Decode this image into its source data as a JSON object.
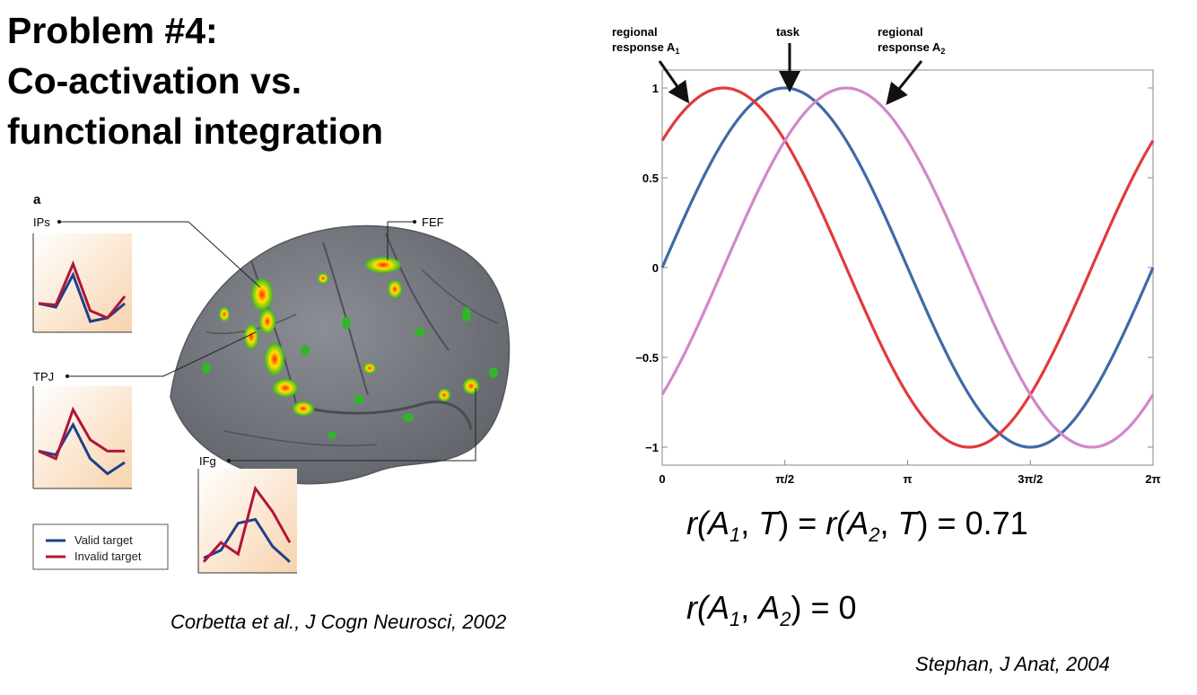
{
  "title": {
    "line1": "Problem #4:",
    "line2": "Co-activation vs.",
    "line3": "functional integration"
  },
  "left_figure": {
    "panel_letter": "a",
    "regions": {
      "ips": "IPs",
      "tpj": "TPJ",
      "ifg": "IFg",
      "fef": "FEF"
    },
    "legend": {
      "valid": "Valid target",
      "invalid": "Invalid target"
    },
    "colors": {
      "valid": "#1e3f8c",
      "invalid": "#b0153a",
      "cortex": "#7b7d85",
      "panel_bg": "#fbe6cd"
    },
    "traces": {
      "ips": {
        "valid": [
          0.3,
          0.25,
          0.7,
          0.05,
          0.1,
          0.3
        ],
        "invalid": [
          0.3,
          0.28,
          0.85,
          0.2,
          0.1,
          0.4
        ]
      },
      "tpj": {
        "valid": [
          0.4,
          0.35,
          0.75,
          0.3,
          0.1,
          0.25
        ],
        "invalid": [
          0.4,
          0.3,
          0.95,
          0.55,
          0.4,
          0.4
        ]
      },
      "ifg": {
        "valid": [
          0.1,
          0.2,
          0.55,
          0.6,
          0.25,
          0.05
        ],
        "invalid": [
          0.05,
          0.3,
          0.15,
          1.0,
          0.7,
          0.3
        ]
      }
    },
    "citation": "Corbetta et al., J Cogn Neurosci, 2002"
  },
  "chart_data": {
    "type": "line",
    "title": "",
    "xlabel": "",
    "ylabel": "",
    "xlim": [
      0,
      6.283185
    ],
    "ylim": [
      -1.1,
      1.1
    ],
    "x_ticks": [
      {
        "value": 0,
        "label": "0"
      },
      {
        "value": 1.570796,
        "label": "π/2"
      },
      {
        "value": 3.141593,
        "label": "π"
      },
      {
        "value": 4.712389,
        "label": "3π/2"
      },
      {
        "value": 6.283185,
        "label": "2π"
      }
    ],
    "y_ticks": [
      {
        "value": 1,
        "label": "1"
      },
      {
        "value": 0.5,
        "label": "0.5"
      },
      {
        "value": 0,
        "label": "0"
      },
      {
        "value": -0.5,
        "label": "−0.5"
      },
      {
        "value": -1,
        "label": "−1"
      }
    ],
    "x": [
      0,
      0.785398,
      1.570796,
      2.356194,
      3.141593,
      3.926991,
      4.712389,
      5.497787,
      6.283185
    ],
    "series": [
      {
        "name": "task",
        "color": "#3f6aa8",
        "phase": 0,
        "values": [
          0,
          0.707,
          1,
          0.707,
          0,
          -0.707,
          -1,
          -0.707,
          0
        ]
      },
      {
        "name": "regional response A1",
        "color": "#e23a3a",
        "phase": 0.785398,
        "values": [
          0.707,
          1,
          0.707,
          0,
          -0.707,
          -1,
          -0.707,
          0,
          0.707
        ]
      },
      {
        "name": "regional response A2",
        "color": "#d088c8",
        "phase": -0.785398,
        "values": [
          -0.707,
          0,
          0.707,
          1,
          0.707,
          0,
          -0.707,
          -1,
          -0.707
        ]
      }
    ],
    "annotations": {
      "a1_line1": "regional",
      "a1_line2": "response A",
      "a1_sub": "1",
      "task": "task",
      "a2_line1": "regional",
      "a2_line2": "response A",
      "a2_sub": "2"
    },
    "grid": false
  },
  "equations": {
    "eq1": {
      "r1": "r(",
      "a1": "A",
      "s1": "1",
      "c1": ", ",
      "t1": "T",
      "m1": ") = ",
      "r2": "r(",
      "a2": "A",
      "s2": "2",
      "c2": ", ",
      "t2": "T",
      "end": ") = 0.71"
    },
    "eq2": {
      "r1": "r(",
      "a1": "A",
      "s1": "1",
      "c1": ", ",
      "a2": "A",
      "s2": "2",
      "end": ") = 0"
    }
  },
  "right_citation": "Stephan, J Anat, 2004"
}
